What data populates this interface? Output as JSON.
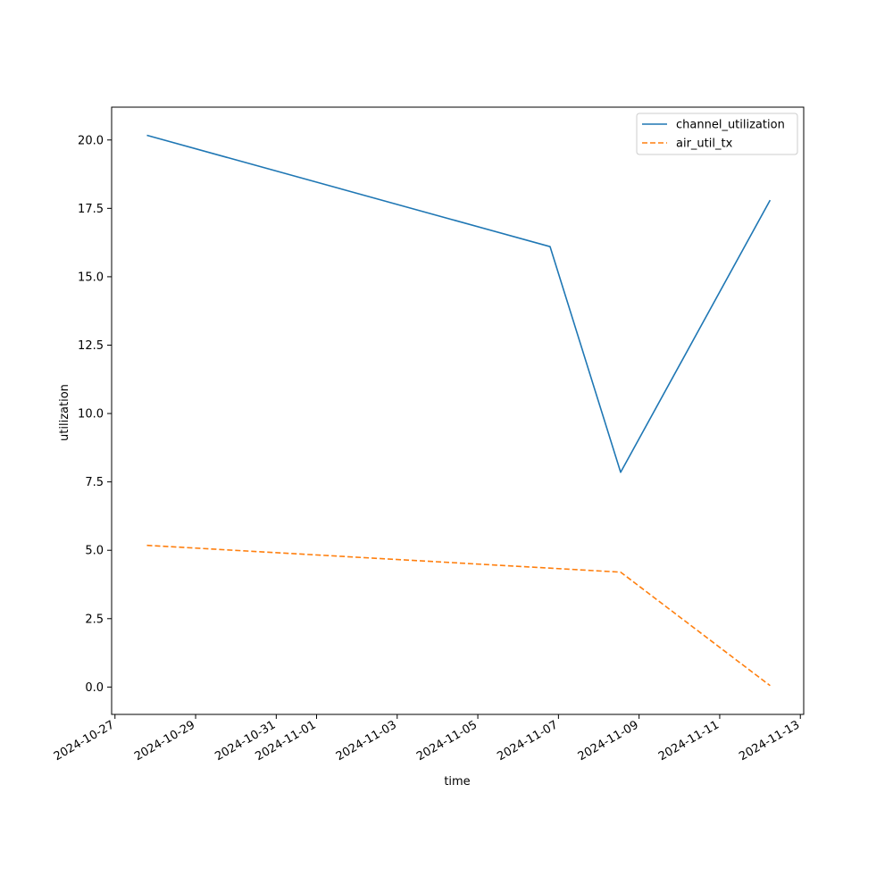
{
  "chart_data": {
    "type": "line",
    "xlabel": "time",
    "ylabel": "utilization",
    "xlim": [
      "2024-10-26 22:00",
      "2024-11-13 02:00"
    ],
    "ylim": [
      -1.0,
      21.2
    ],
    "grid": false,
    "legend_position": "top-right",
    "x_ticks": [
      "2024-10-27",
      "2024-10-29",
      "2024-10-31",
      "2024-11-01",
      "2024-11-03",
      "2024-11-05",
      "2024-11-07",
      "2024-11-09",
      "2024-11-11",
      "2024-11-13"
    ],
    "y_ticks": [
      0.0,
      2.5,
      5.0,
      7.5,
      10.0,
      12.5,
      15.0,
      17.5,
      20.0
    ],
    "series": [
      {
        "name": "channel_utilization",
        "color": "#1f77b4",
        "style": "solid",
        "points": [
          {
            "x": "2024-10-27 19:00",
            "y": 20.17
          },
          {
            "x": "2024-11-06 19:00",
            "y": 16.1
          },
          {
            "x": "2024-11-08 13:00",
            "y": 7.85
          },
          {
            "x": "2024-11-12 06:00",
            "y": 17.8
          }
        ]
      },
      {
        "name": "air_util_tx",
        "color": "#ff7f0e",
        "style": "dashed",
        "points": [
          {
            "x": "2024-10-27 19:00",
            "y": 5.18
          },
          {
            "x": "2024-11-08 13:00",
            "y": 4.2
          },
          {
            "x": "2024-11-12 06:00",
            "y": 0.05
          }
        ]
      }
    ]
  }
}
